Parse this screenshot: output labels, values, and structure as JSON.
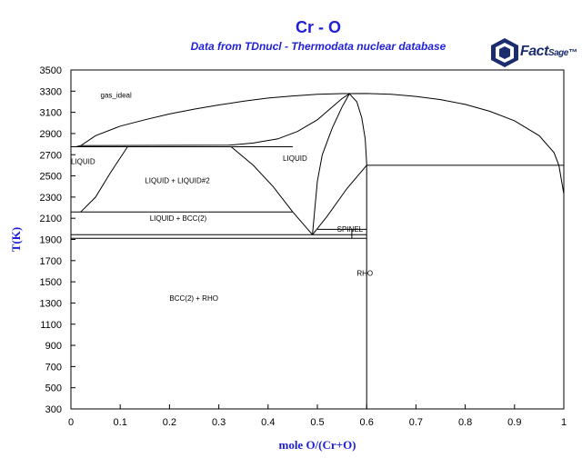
{
  "chart_data": {
    "type": "line",
    "title": "Cr - O",
    "subtitle": "Data from TDnucl - Thermodata nuclear database",
    "xlabel": "mole O/(Cr+O)",
    "ylabel": "T(K)",
    "xlim": [
      0,
      1
    ],
    "ylim": [
      300,
      3500
    ],
    "xticks": [
      "0",
      "0.1",
      "0.2",
      "0.3",
      "0.4",
      "0.5",
      "0.6",
      "0.7",
      "0.8",
      "0.9",
      "1"
    ],
    "yticks": [
      "300",
      "500",
      "700",
      "900",
      "1100",
      "1300",
      "1500",
      "1700",
      "1900",
      "2100",
      "2300",
      "2500",
      "2700",
      "2900",
      "3100",
      "3300",
      "3500"
    ],
    "grid": false,
    "region_labels": [
      {
        "text": "gas_ideal",
        "x": 0.06,
        "y": 3240
      },
      {
        "text": "LIQUID",
        "x": 0.0,
        "y": 2610
      },
      {
        "text": "LIQUID",
        "x": 0.43,
        "y": 2640
      },
      {
        "text": "LIQUID + LIQUID#2",
        "x": 0.15,
        "y": 2430
      },
      {
        "text": "LIQUID + BCC(2)",
        "x": 0.16,
        "y": 2075
      },
      {
        "text": "SPINEL",
        "x": 0.54,
        "y": 1975
      },
      {
        "text": "RHO",
        "x": 0.58,
        "y": 1555
      },
      {
        "text": "BCC(2) + RHO",
        "x": 0.2,
        "y": 1320
      }
    ],
    "series": [
      {
        "points": [
          [
            0,
            2775
          ],
          [
            0.01,
            2775
          ],
          [
            0.02,
            2785
          ],
          [
            0.05,
            2880
          ],
          [
            0.1,
            2970
          ],
          [
            0.15,
            3030
          ],
          [
            0.2,
            3085
          ],
          [
            0.25,
            3130
          ],
          [
            0.3,
            3170
          ],
          [
            0.35,
            3205
          ],
          [
            0.4,
            3235
          ],
          [
            0.45,
            3255
          ],
          [
            0.5,
            3270
          ],
          [
            0.55,
            3277
          ],
          [
            0.6,
            3278
          ],
          [
            0.65,
            3270
          ],
          [
            0.7,
            3250
          ],
          [
            0.75,
            3220
          ],
          [
            0.8,
            3175
          ],
          [
            0.85,
            3110
          ],
          [
            0.9,
            3020
          ],
          [
            0.95,
            2880
          ],
          [
            0.98,
            2720
          ],
          [
            0.99,
            2600
          ],
          [
            1.0,
            2330
          ]
        ]
      },
      {
        "points": [
          [
            0.02,
            2785
          ],
          [
            0.32,
            2790
          ],
          [
            0.37,
            2810
          ],
          [
            0.42,
            2850
          ],
          [
            0.46,
            2920
          ],
          [
            0.5,
            3030
          ],
          [
            0.53,
            3150
          ],
          [
            0.55,
            3230
          ],
          [
            0.565,
            3275
          ]
        ]
      },
      {
        "points": [
          [
            0.565,
            3275
          ],
          [
            0.58,
            3200
          ],
          [
            0.59,
            3050
          ],
          [
            0.597,
            2850
          ],
          [
            0.6,
            2620
          ],
          [
            0.6,
            300
          ]
        ]
      },
      {
        "points": [
          [
            0.565,
            3275
          ],
          [
            0.55,
            3150
          ],
          [
            0.53,
            2950
          ],
          [
            0.51,
            2700
          ],
          [
            0.5,
            2450
          ],
          [
            0.495,
            2200
          ],
          [
            0.49,
            1945
          ]
        ]
      },
      {
        "points": [
          [
            0,
            2775
          ],
          [
            0.45,
            2775
          ]
        ]
      },
      {
        "points": [
          [
            0.02,
            2160
          ],
          [
            0.05,
            2300
          ],
          [
            0.08,
            2530
          ],
          [
            0.115,
            2775
          ]
        ]
      },
      {
        "points": [
          [
            0.325,
            2775
          ],
          [
            0.37,
            2600
          ],
          [
            0.41,
            2400
          ],
          [
            0.45,
            2160
          ]
        ]
      },
      {
        "points": [
          [
            0,
            2160
          ],
          [
            0.45,
            2160
          ]
        ]
      },
      {
        "points": [
          [
            0.45,
            2160
          ],
          [
            0.49,
            1945
          ]
        ]
      },
      {
        "points": [
          [
            0.49,
            1945
          ],
          [
            0.52,
            2120
          ],
          [
            0.56,
            2380
          ],
          [
            0.6,
            2600
          ]
        ]
      },
      {
        "points": [
          [
            0.6,
            2600
          ],
          [
            1.0,
            2600
          ]
        ]
      },
      {
        "points": [
          [
            0,
            1945
          ],
          [
            0.6,
            1945
          ]
        ]
      },
      {
        "points": [
          [
            0,
            1910
          ],
          [
            0.6,
            1910
          ]
        ]
      },
      {
        "points": [
          [
            0.5,
            1995
          ],
          [
            0.6,
            1995
          ]
        ]
      },
      {
        "points": [
          [
            0.57,
            1995
          ],
          [
            0.57,
            1910
          ]
        ]
      }
    ]
  },
  "logo": {
    "brand": "Fact",
    "brand2": "Sage",
    "mark": "™"
  }
}
